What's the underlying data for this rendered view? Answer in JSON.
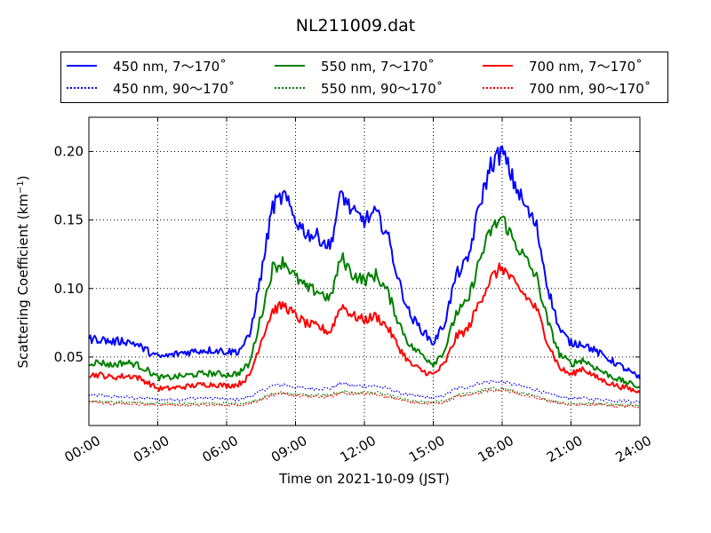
{
  "chart_data": {
    "type": "line",
    "title": "NL211009.dat",
    "xlabel": "Time on 2021-10-09 (JST)",
    "ylabel": "Scattering Coefficient (km",
    "ylabel_sup": "−1",
    "ylabel_close": ")",
    "x_unit": "hours",
    "xlim": [
      0,
      24
    ],
    "ylim": [
      0.0,
      0.225
    ],
    "x_ticks": [
      {
        "v": 0,
        "label": "00:00"
      },
      {
        "v": 3,
        "label": "03:00"
      },
      {
        "v": 6,
        "label": "06:00"
      },
      {
        "v": 9,
        "label": "09:00"
      },
      {
        "v": 12,
        "label": "12:00"
      },
      {
        "v": 15,
        "label": "15:00"
      },
      {
        "v": 18,
        "label": "18:00"
      },
      {
        "v": 21,
        "label": "21:00"
      },
      {
        "v": 24,
        "label": "24:00"
      }
    ],
    "y_ticks": [
      {
        "v": 0.05,
        "label": "0.05"
      },
      {
        "v": 0.1,
        "label": "0.10"
      },
      {
        "v": 0.15,
        "label": "0.15"
      },
      {
        "v": 0.2,
        "label": "0.20"
      }
    ],
    "grid": true,
    "legend_position": "top",
    "x": [
      0,
      0.5,
      1,
      1.5,
      2,
      2.5,
      3,
      3.5,
      4,
      4.5,
      5,
      5.5,
      6,
      6.5,
      7,
      7.5,
      8,
      8.5,
      9,
      9.5,
      10,
      10.5,
      11,
      11.5,
      12,
      12.5,
      13,
      13.5,
      14,
      14.5,
      15,
      15.5,
      16,
      16.5,
      17,
      17.5,
      18,
      18.5,
      19,
      19.5,
      20,
      20.5,
      21,
      21.5,
      22,
      22.5,
      23,
      23.5,
      24
    ],
    "series": [
      {
        "name": "450 nm, 7～170˚",
        "color": "#0000ff",
        "style": "solid",
        "values": [
          0.063,
          0.063,
          0.061,
          0.062,
          0.06,
          0.055,
          0.05,
          0.051,
          0.053,
          0.054,
          0.055,
          0.055,
          0.054,
          0.054,
          0.065,
          0.11,
          0.16,
          0.168,
          0.15,
          0.14,
          0.138,
          0.13,
          0.17,
          0.155,
          0.15,
          0.155,
          0.14,
          0.105,
          0.08,
          0.07,
          0.06,
          0.075,
          0.11,
          0.12,
          0.16,
          0.19,
          0.2,
          0.178,
          0.16,
          0.145,
          0.1,
          0.07,
          0.06,
          0.06,
          0.055,
          0.05,
          0.045,
          0.04,
          0.034
        ]
      },
      {
        "name": "450 nm, 90～170˚",
        "color": "#0000ff",
        "style": "dotted",
        "values": [
          0.022,
          0.022,
          0.021,
          0.021,
          0.02,
          0.02,
          0.019,
          0.019,
          0.019,
          0.02,
          0.02,
          0.02,
          0.019,
          0.019,
          0.021,
          0.025,
          0.029,
          0.03,
          0.028,
          0.027,
          0.027,
          0.027,
          0.031,
          0.029,
          0.029,
          0.029,
          0.027,
          0.024,
          0.022,
          0.021,
          0.02,
          0.022,
          0.027,
          0.028,
          0.031,
          0.032,
          0.032,
          0.03,
          0.028,
          0.026,
          0.023,
          0.021,
          0.02,
          0.02,
          0.019,
          0.019,
          0.018,
          0.018,
          0.017
        ]
      },
      {
        "name": "550 nm, 7～170˚",
        "color": "#008000",
        "style": "solid",
        "values": [
          0.046,
          0.046,
          0.044,
          0.046,
          0.045,
          0.041,
          0.035,
          0.035,
          0.036,
          0.037,
          0.038,
          0.038,
          0.037,
          0.038,
          0.045,
          0.08,
          0.115,
          0.12,
          0.108,
          0.1,
          0.098,
          0.092,
          0.123,
          0.11,
          0.106,
          0.11,
          0.098,
          0.075,
          0.058,
          0.052,
          0.045,
          0.055,
          0.082,
          0.09,
          0.12,
          0.142,
          0.152,
          0.135,
          0.122,
          0.108,
          0.075,
          0.052,
          0.045,
          0.048,
          0.043,
          0.038,
          0.034,
          0.031,
          0.028
        ]
      },
      {
        "name": "550 nm, 90～170˚",
        "color": "#008000",
        "style": "dotted",
        "values": [
          0.018,
          0.018,
          0.017,
          0.017,
          0.017,
          0.016,
          0.016,
          0.016,
          0.016,
          0.016,
          0.016,
          0.016,
          0.016,
          0.016,
          0.017,
          0.02,
          0.023,
          0.024,
          0.023,
          0.022,
          0.022,
          0.022,
          0.025,
          0.024,
          0.024,
          0.024,
          0.022,
          0.02,
          0.018,
          0.017,
          0.017,
          0.018,
          0.022,
          0.023,
          0.025,
          0.027,
          0.027,
          0.025,
          0.023,
          0.021,
          0.019,
          0.017,
          0.016,
          0.016,
          0.016,
          0.016,
          0.015,
          0.015,
          0.015
        ]
      },
      {
        "name": "700 nm, 7～170˚",
        "color": "#ff0000",
        "style": "solid",
        "values": [
          0.037,
          0.037,
          0.035,
          0.036,
          0.036,
          0.032,
          0.027,
          0.027,
          0.028,
          0.029,
          0.03,
          0.03,
          0.029,
          0.03,
          0.036,
          0.062,
          0.084,
          0.088,
          0.08,
          0.074,
          0.072,
          0.068,
          0.088,
          0.08,
          0.077,
          0.08,
          0.072,
          0.057,
          0.045,
          0.04,
          0.037,
          0.045,
          0.065,
          0.07,
          0.09,
          0.107,
          0.116,
          0.104,
          0.095,
          0.085,
          0.06,
          0.042,
          0.037,
          0.042,
          0.036,
          0.032,
          0.029,
          0.027,
          0.024
        ]
      },
      {
        "name": "700 nm, 90～170˚",
        "color": "#ff0000",
        "style": "dotted",
        "values": [
          0.017,
          0.017,
          0.016,
          0.016,
          0.016,
          0.015,
          0.015,
          0.015,
          0.015,
          0.015,
          0.015,
          0.015,
          0.015,
          0.015,
          0.016,
          0.019,
          0.022,
          0.023,
          0.022,
          0.021,
          0.021,
          0.021,
          0.024,
          0.023,
          0.023,
          0.023,
          0.021,
          0.019,
          0.017,
          0.016,
          0.016,
          0.017,
          0.021,
          0.022,
          0.024,
          0.026,
          0.026,
          0.024,
          0.022,
          0.02,
          0.018,
          0.016,
          0.015,
          0.015,
          0.015,
          0.015,
          0.014,
          0.014,
          0.014
        ]
      }
    ]
  }
}
